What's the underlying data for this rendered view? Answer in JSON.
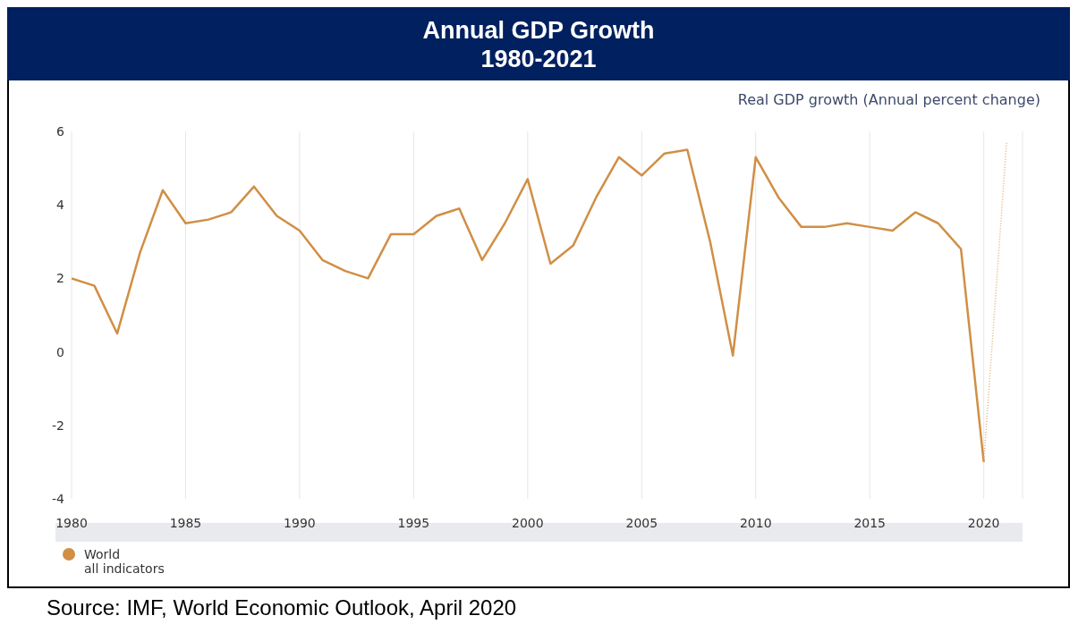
{
  "chart_data": {
    "type": "line",
    "title": "Annual GDP Growth\n1980-2021",
    "subtitle": "Real GDP growth (Annual percent change)",
    "annotations": [
      "all indicators",
      "Source: IMF, World Economic Outlook, April 2020"
    ],
    "x": [
      1980,
      1981,
      1982,
      1983,
      1984,
      1985,
      1986,
      1987,
      1988,
      1989,
      1990,
      1991,
      1992,
      1993,
      1994,
      1995,
      1996,
      1997,
      1998,
      1999,
      2000,
      2001,
      2002,
      2003,
      2004,
      2005,
      2006,
      2007,
      2008,
      2009,
      2010,
      2011,
      2012,
      2013,
      2014,
      2015,
      2016,
      2017,
      2018,
      2019,
      2020
    ],
    "series": [
      {
        "name": "World",
        "color": "#d08f45",
        "line_style": "solid",
        "values": [
          2.0,
          1.8,
          0.5,
          2.7,
          4.4,
          3.5,
          3.6,
          3.8,
          4.5,
          3.7,
          3.3,
          2.5,
          2.2,
          2.0,
          3.2,
          3.2,
          3.7,
          3.9,
          2.5,
          3.5,
          4.7,
          2.4,
          2.9,
          4.2,
          5.3,
          4.8,
          5.4,
          5.5,
          3.0,
          -0.1,
          5.3,
          4.2,
          3.4,
          3.4,
          3.5,
          3.4,
          3.3,
          3.8,
          3.5,
          2.8,
          -3.0
        ]
      },
      {
        "color": "#e0b07a",
        "line_style": "dotted",
        "x": [
          2020,
          2021
        ],
        "values": [
          -3.0,
          5.7
        ]
      }
    ],
    "xlim": [
      1980,
      2021.7
    ],
    "xticks": [
      1980,
      1985,
      1990,
      1995,
      2000,
      2005,
      2010,
      2015,
      2020
    ],
    "ylim": [
      -4,
      6
    ],
    "yticks": [
      -4,
      -2,
      0,
      2,
      4,
      6
    ],
    "grid": "x",
    "legend": "bottom left",
    "marker": "none"
  }
}
